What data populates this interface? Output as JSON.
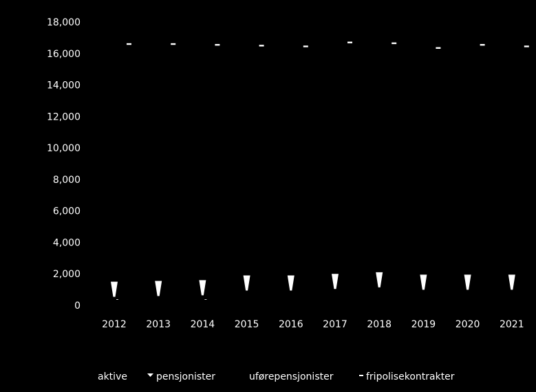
{
  "chart_data": {
    "type": "bar",
    "categories": [
      "2012",
      "2013",
      "2014",
      "2015",
      "2016",
      "2017",
      "2018",
      "2019",
      "2020",
      "2021"
    ],
    "series": [
      {
        "name": "aktive",
        "values": [
          0,
          0,
          0,
          0,
          0,
          0,
          0,
          0,
          0,
          0
        ]
      },
      {
        "name": "pensjonister",
        "values": [
          1500,
          1550,
          1600,
          1900,
          1900,
          2000,
          2100,
          1950,
          1950,
          1950
        ]
      },
      {
        "name": "uførepensjonister",
        "values": [
          0,
          0,
          0,
          0,
          0,
          0,
          0,
          0,
          0,
          0
        ]
      },
      {
        "name": "fripolisekontrakter",
        "values": [
          16600,
          16600,
          16550,
          16500,
          16450,
          16700,
          16650,
          16350,
          16550,
          16450
        ]
      }
    ],
    "yticks": [
      "0",
      "2,000",
      "4,000",
      "6,000",
      "8,000",
      "10,000",
      "12,000",
      "14,000",
      "16,000",
      "18,000"
    ],
    "ylim": [
      0,
      18000
    ],
    "grid": false,
    "legend_position": "bottom",
    "colors": {
      "background": "#000000",
      "text": "#ffffff",
      "marker": "#ffffff"
    }
  }
}
